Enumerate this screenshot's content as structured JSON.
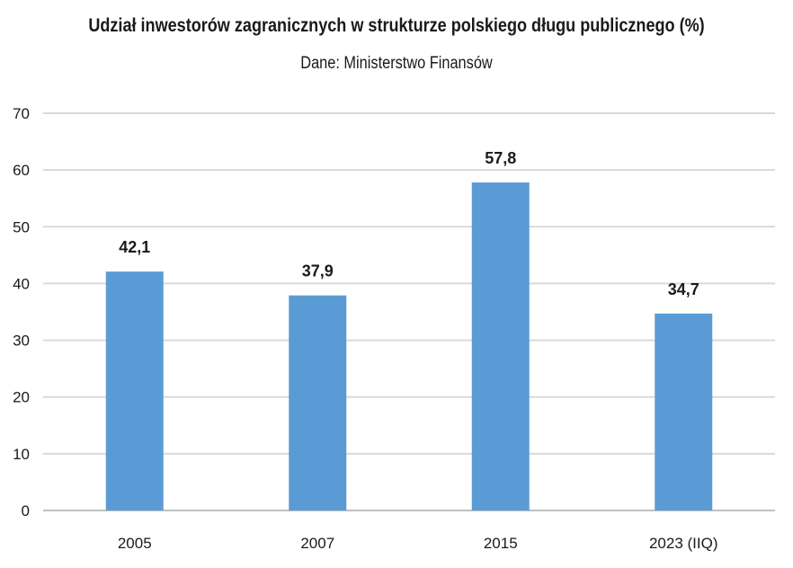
{
  "chart_data": {
    "type": "bar",
    "title": "Udział inwestorów zagranicznych w strukturze polskiego długu publicznego (%)",
    "subtitle": "Dane: Ministerstwo Finansów",
    "categories": [
      "2005",
      "2007",
      "2015",
      "2023 (IIQ)"
    ],
    "values": [
      42.1,
      37.9,
      57.8,
      34.7
    ],
    "data_labels": [
      "42,1",
      "37,9",
      "57,8",
      "34,7"
    ],
    "y_ticks": [
      "0",
      "10",
      "20",
      "30",
      "40",
      "50",
      "60",
      "70"
    ],
    "ylim": [
      0,
      70
    ],
    "grid": true,
    "legend": "none",
    "bar_color": "#5b9bd5",
    "grid_color": "#d9d9d9",
    "axis_color": "#bfbfbf"
  }
}
